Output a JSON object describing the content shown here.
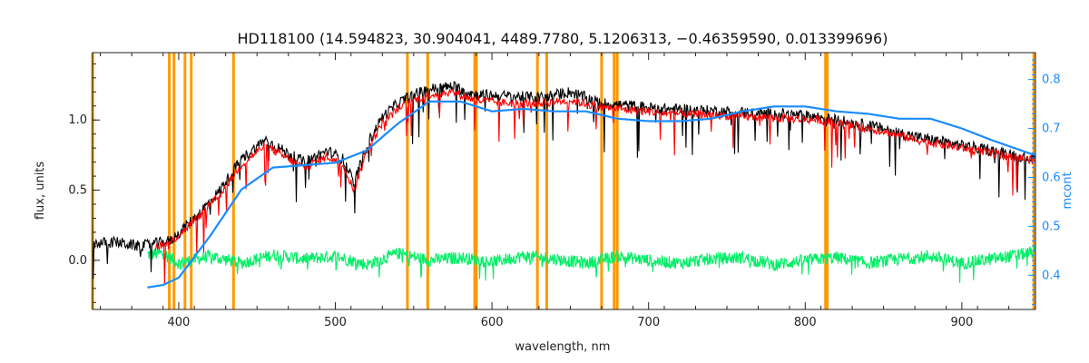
{
  "chart_data": {
    "type": "line",
    "title": "HD118100   (14.594823, 30.904041, 4489.7780, 5.1206313, −0.46359590, 0.013399696)",
    "xlabel": "wavelength, nm",
    "ylabel": "flux, units",
    "y2label": "mcont",
    "xlim": [
      345,
      947
    ],
    "ylim": [
      -0.35,
      1.48
    ],
    "y2lim": [
      0.33,
      0.855
    ],
    "x_ticks": [
      400,
      500,
      600,
      700,
      800,
      900
    ],
    "y_ticks": [
      0.0,
      0.5,
      1.0
    ],
    "y_tick_labels": [
      "0.0",
      "0.5",
      "1.0"
    ],
    "y2_ticks": [
      0.4,
      0.5,
      0.6,
      0.7,
      0.8
    ],
    "vertical_lines": [
      345,
      394,
      397,
      404,
      408,
      435,
      546,
      559,
      589,
      590,
      629,
      635,
      670,
      678,
      680,
      813,
      814,
      946
    ],
    "series": [
      {
        "role": "observed",
        "color": "#000000",
        "x": [
          345,
          360,
          375,
          385,
          395,
          410,
          425,
          440,
          455,
          470,
          480,
          495,
          505,
          512,
          520,
          530,
          540,
          550,
          560,
          575,
          590,
          610,
          630,
          650,
          670,
          690,
          710,
          730,
          750,
          770,
          790,
          810,
          830,
          850,
          870,
          890,
          910,
          930,
          947
        ],
        "y": [
          0.12,
          0.13,
          0.1,
          0.12,
          0.14,
          0.3,
          0.48,
          0.72,
          0.86,
          0.76,
          0.7,
          0.78,
          0.72,
          0.55,
          0.82,
          1.02,
          1.12,
          1.18,
          1.22,
          1.24,
          1.18,
          1.17,
          1.16,
          1.2,
          1.12,
          1.1,
          1.08,
          1.07,
          1.06,
          1.05,
          1.04,
          1.02,
          0.98,
          0.94,
          0.88,
          0.84,
          0.8,
          0.76,
          0.72
        ]
      },
      {
        "role": "model",
        "color": "#ff0000",
        "x": [
          385,
          395,
          410,
          425,
          440,
          455,
          470,
          480,
          495,
          505,
          512,
          520,
          530,
          540,
          550,
          560,
          575,
          590,
          610,
          630,
          650,
          670,
          690,
          710,
          730,
          750,
          770,
          790,
          810,
          830,
          850,
          870,
          890,
          910,
          930,
          947
        ],
        "y": [
          0.1,
          0.13,
          0.28,
          0.45,
          0.68,
          0.82,
          0.72,
          0.66,
          0.74,
          0.68,
          0.5,
          0.78,
          0.98,
          1.08,
          1.14,
          1.18,
          1.2,
          1.14,
          1.12,
          1.12,
          1.14,
          1.09,
          1.07,
          1.05,
          1.04,
          1.03,
          1.02,
          1.01,
          1.0,
          0.96,
          0.92,
          0.86,
          0.82,
          0.78,
          0.74,
          0.71
        ]
      },
      {
        "role": "residuals",
        "color": "#00ee66",
        "x": [
          380,
          390,
          400,
          420,
          440,
          460,
          480,
          500,
          520,
          540,
          560,
          580,
          600,
          620,
          640,
          660,
          680,
          700,
          720,
          740,
          760,
          780,
          800,
          820,
          840,
          860,
          880,
          900,
          920,
          947
        ],
        "y": [
          0.04,
          0.05,
          -0.02,
          0.03,
          -0.02,
          0.04,
          0.01,
          0.03,
          -0.03,
          0.05,
          0.0,
          0.02,
          -0.01,
          0.03,
          0.01,
          -0.02,
          0.03,
          0.0,
          -0.02,
          0.01,
          0.02,
          -0.03,
          0.0,
          0.02,
          -0.02,
          0.01,
          0.03,
          -0.02,
          0.01,
          0.06
        ]
      },
      {
        "role": "mcont",
        "color": "#1a8cff",
        "axis": "right",
        "x": [
          380,
          390,
          400,
          420,
          440,
          460,
          480,
          500,
          520,
          540,
          560,
          580,
          600,
          620,
          640,
          660,
          680,
          700,
          720,
          740,
          760,
          780,
          800,
          820,
          840,
          860,
          880,
          900,
          920,
          947
        ],
        "y": [
          0.375,
          0.38,
          0.395,
          0.48,
          0.575,
          0.62,
          0.625,
          0.63,
          0.655,
          0.71,
          0.755,
          0.755,
          0.735,
          0.74,
          0.735,
          0.735,
          0.72,
          0.715,
          0.715,
          0.72,
          0.735,
          0.745,
          0.745,
          0.735,
          0.73,
          0.72,
          0.72,
          0.7,
          0.675,
          0.645
        ]
      }
    ]
  }
}
